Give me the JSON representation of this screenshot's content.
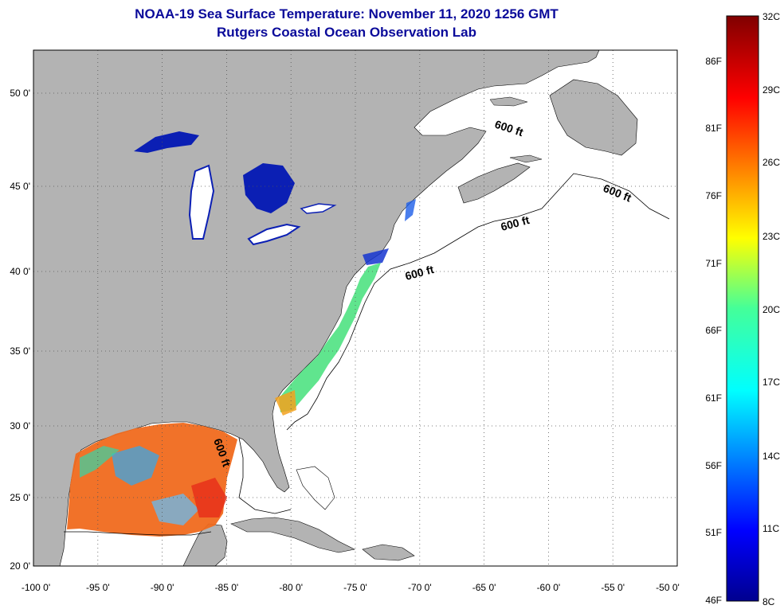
{
  "title_line1": "NOAA-19 Sea Surface Temperature:  November 11, 2020 1256 GMT",
  "title_line2": "Rutgers Coastal Ocean Observation Lab",
  "axes": {
    "lon_ticks": [
      "-100 0'",
      "-95 0'",
      "-90 0'",
      "-85 0'",
      "-80 0'",
      "-75 0'",
      "-70 0'",
      "-65 0'",
      "-60 0'",
      "-55 0'",
      "-50 0'"
    ],
    "lat_ticks": [
      "50 0'",
      "45 0'",
      "40 0'",
      "35 0'",
      "30 0'",
      "25 0'",
      "20 0'"
    ]
  },
  "contour_labels": [
    "600 ft",
    "600 ft",
    "600 ft",
    "600 ft",
    "600 ft"
  ],
  "colorbar": {
    "celsius": [
      "32C",
      "29C",
      "26C",
      "23C",
      "20C",
      "17C",
      "14C",
      "11C",
      "8C"
    ],
    "fahrenheit": [
      "86F",
      "81F",
      "76F",
      "71F",
      "66F",
      "61F",
      "56F",
      "51F",
      "46F"
    ]
  },
  "colors": {
    "land": "#b3b3b3",
    "ocean_no_data": "#ffffff",
    "title": "#0a0a9a",
    "gulf_warm": "#f06a1e",
    "lake_cold": "#0b1fb4"
  }
}
